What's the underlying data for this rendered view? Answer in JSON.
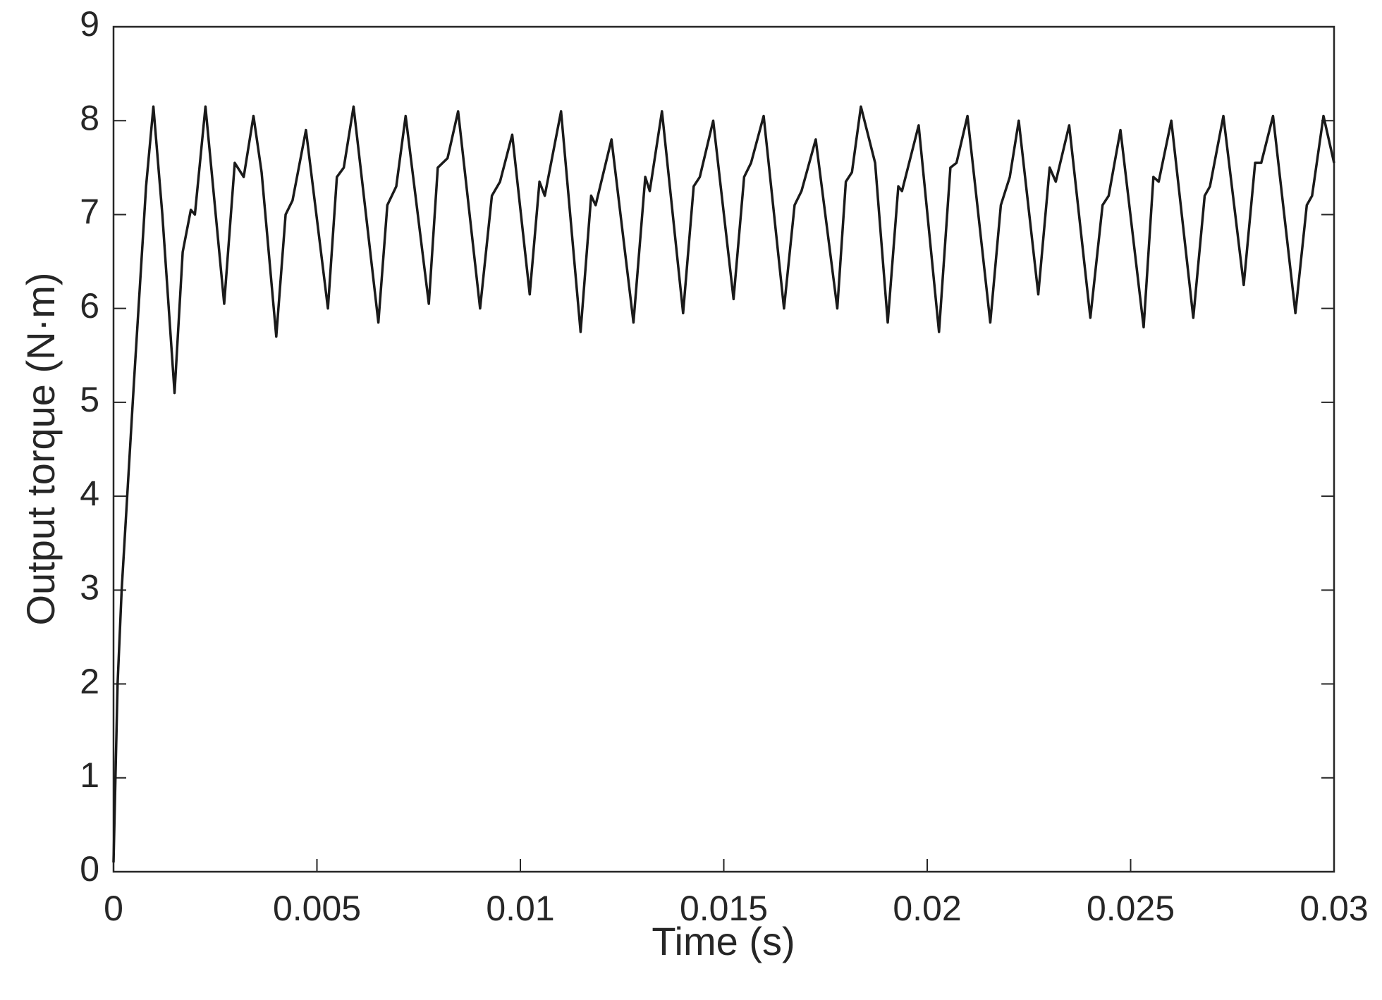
{
  "chart_data": {
    "type": "line",
    "x_label": "Time (s)",
    "y_label": "Output torque (N·m)",
    "color": "#1a1a1a",
    "xlim": [
      0,
      0.03
    ],
    "ylim": [
      0,
      9
    ],
    "xticks": [
      0,
      0.005,
      0.01,
      0.015,
      0.02,
      0.025,
      0.03
    ],
    "yticks": [
      0,
      1,
      2,
      3,
      4,
      5,
      6,
      7,
      8,
      9
    ],
    "x": [
      0,
      0.0001,
      0.0002,
      0.0005,
      0.0008,
      0.00098,
      0.0012,
      0.0015,
      0.0017,
      0.0019,
      0.002,
      0.00226,
      0.00272,
      0.00298,
      0.0032,
      0.00344,
      0.00364,
      0.004,
      0.00423,
      0.0044,
      0.00473,
      0.00527,
      0.00549,
      0.00566,
      0.0059,
      0.00651,
      0.00673,
      0.00695,
      0.00718,
      0.00775,
      0.00797,
      0.00821,
      0.00847,
      0.00901,
      0.0093,
      0.0095,
      0.0098,
      0.01023,
      0.01047,
      0.0106,
      0.011,
      0.01148,
      0.01174,
      0.01185,
      0.01224,
      0.01278,
      0.01307,
      0.01318,
      0.01348,
      0.014,
      0.01426,
      0.01441,
      0.01474,
      0.01524,
      0.0155,
      0.01567,
      0.01598,
      0.01648,
      0.01674,
      0.01691,
      0.01726,
      0.01779,
      0.018,
      0.01815,
      0.01837,
      0.01872,
      0.01903,
      0.01929,
      0.01938,
      0.01979,
      0.02029,
      0.02057,
      0.02072,
      0.02099,
      0.02155,
      0.02181,
      0.02203,
      0.02225,
      0.02273,
      0.02301,
      0.02316,
      0.02349,
      0.02401,
      0.02431,
      0.02446,
      0.02475,
      0.02532,
      0.02556,
      0.02569,
      0.026,
      0.02654,
      0.02682,
      0.02695,
      0.02728,
      0.02778,
      0.02806,
      0.02821,
      0.0285,
      0.02905,
      0.02933,
      0.02946,
      0.02974,
      0.03
    ],
    "values": [
      0.1,
      2.0,
      3.0,
      5.2,
      7.3,
      8.15,
      7.0,
      5.1,
      6.6,
      7.05,
      7.0,
      8.15,
      6.05,
      7.55,
      7.4,
      8.05,
      7.45,
      5.7,
      7.0,
      7.15,
      7.9,
      6.0,
      7.4,
      7.5,
      8.15,
      5.85,
      7.1,
      7.3,
      8.05,
      6.05,
      7.5,
      7.6,
      8.1,
      6.0,
      7.2,
      7.35,
      7.85,
      6.15,
      7.35,
      7.2,
      8.1,
      5.75,
      7.2,
      7.1,
      7.8,
      5.85,
      7.4,
      7.25,
      8.1,
      5.95,
      7.3,
      7.4,
      8.0,
      6.1,
      7.4,
      7.55,
      8.05,
      6.0,
      7.1,
      7.25,
      7.8,
      6.0,
      7.35,
      7.45,
      8.15,
      7.55,
      5.85,
      7.3,
      7.25,
      7.95,
      5.75,
      7.5,
      7.55,
      8.05,
      5.85,
      7.1,
      7.4,
      8.0,
      6.15,
      7.5,
      7.35,
      7.95,
      5.9,
      7.1,
      7.2,
      7.9,
      5.8,
      7.4,
      7.35,
      8.0,
      5.9,
      7.2,
      7.3,
      8.05,
      6.25,
      7.55,
      7.55,
      8.05,
      5.95,
      7.1,
      7.2,
      8.05,
      7.55
    ]
  }
}
